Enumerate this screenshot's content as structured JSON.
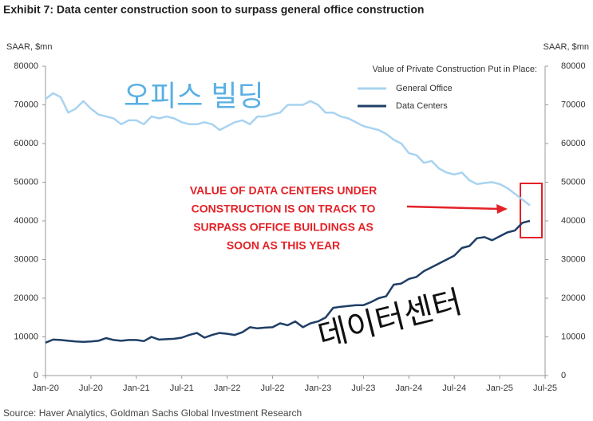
{
  "chart_data": {
    "type": "line",
    "title": "Exhibit 7: Data center construction soon to surpass general office construction",
    "y_label": "SAAR, $mn",
    "y2_label": "SAAR, $mn",
    "legend_title": "Value of Private Construction Put in Place:",
    "source": "Source: Haver Analytics, Goldman Sachs Global Investment Research",
    "annotations": [
      "VALUE OF DATA CENTERS UNDER",
      "CONSTRUCTION IS ON TRACK TO",
      "SURPASS OFFICE BUILDINGS AS",
      "SOON AS THIS YEAR"
    ],
    "overlay_texts": [
      "오피스 빌딩",
      "데이터센터"
    ],
    "categories": [
      "Jan-20",
      null,
      null,
      null,
      null,
      null,
      "Jul-20",
      null,
      null,
      null,
      null,
      null,
      "Jan-21",
      null,
      null,
      null,
      null,
      null,
      "Jul-21",
      null,
      null,
      null,
      null,
      null,
      "Jan-22",
      null,
      null,
      null,
      null,
      null,
      "Jul-22",
      null,
      null,
      null,
      null,
      null,
      "Jan-23",
      null,
      null,
      null,
      null,
      null,
      "Jul-23",
      null,
      null,
      null,
      null,
      null,
      "Jan-24",
      null,
      null,
      null,
      null,
      null,
      "Jul-24",
      null,
      null,
      null,
      null,
      null,
      "Jan-25",
      null,
      null,
      null,
      null,
      null,
      "Jul-25"
    ],
    "series": [
      {
        "name": "General Office",
        "color": "#a8d3f0",
        "values": [
          71500,
          73000,
          72000,
          68000,
          69000,
          71000,
          69000,
          67500,
          67000,
          66500,
          65000,
          66000,
          66000,
          65000,
          67000,
          66500,
          67000,
          66500,
          65500,
          65000,
          65000,
          65500,
          65000,
          63500,
          64500,
          65500,
          66000,
          65000,
          67000,
          67000,
          67500,
          68000,
          70000,
          70000,
          70000,
          71000,
          70000,
          68000,
          68000,
          67000,
          66500,
          65500,
          64500,
          64000,
          63500,
          62500,
          61000,
          60000,
          57500,
          57000,
          55000,
          55500,
          53500,
          52500,
          52000,
          52500,
          50500,
          49500,
          49800,
          50000,
          49500,
          48500,
          47000,
          45500,
          44000,
          null,
          null
        ]
      },
      {
        "name": "Data Centers",
        "color": "#1f3e66",
        "values": [
          8500,
          9300,
          9200,
          9000,
          8800,
          8700,
          8800,
          9000,
          9700,
          9200,
          9000,
          9200,
          9200,
          8900,
          10000,
          9300,
          9400,
          9500,
          9800,
          10500,
          11000,
          9800,
          10500,
          11000,
          10800,
          10500,
          11200,
          12500,
          12200,
          12400,
          12500,
          13500,
          13000,
          14000,
          12500,
          13500,
          14000,
          15000,
          17500,
          17800,
          18000,
          18200,
          18200,
          19000,
          20000,
          20500,
          23500,
          23800,
          25000,
          25500,
          27000,
          28000,
          29000,
          30000,
          31000,
          33000,
          33500,
          35500,
          35800,
          35000,
          36000,
          37000,
          37500,
          39500,
          40000,
          null,
          null
        ]
      }
    ],
    "ylim": [
      0,
      80000
    ],
    "yticks": [
      0,
      10000,
      20000,
      30000,
      40000,
      50000,
      60000,
      70000,
      80000
    ],
    "y2lim": [
      0,
      80000
    ],
    "y2ticks": [
      0,
      10000,
      20000,
      30000,
      40000,
      50000,
      60000,
      70000,
      80000
    ],
    "grid": false
  }
}
